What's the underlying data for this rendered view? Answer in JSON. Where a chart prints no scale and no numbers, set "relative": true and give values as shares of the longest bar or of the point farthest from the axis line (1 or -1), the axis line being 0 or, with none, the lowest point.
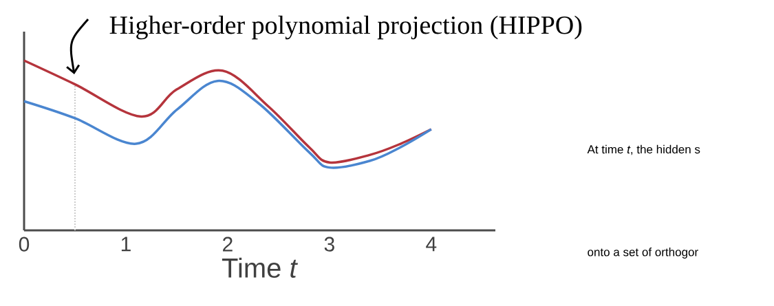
{
  "chart_data": {
    "type": "line",
    "title": "Higher-order polynomial projection (HIPPO)",
    "xlabel": "Time *t*",
    "relative": true,
    "xlim": [
      0,
      4.63
    ],
    "xticks": [
      0,
      1,
      2,
      3,
      4
    ],
    "marker": "none",
    "line_style": "solid",
    "series": [
      {
        "color": "#b5343c",
        "x": [
          0,
          0.5,
          1.15,
          1.5,
          1.95,
          2.4,
          2.8,
          3.0,
          3.4,
          3.7,
          4
        ],
        "values": [
          1.0,
          0.86,
          0.67,
          0.83,
          0.94,
          0.73,
          0.49,
          0.4,
          0.445,
          0.51,
          0.595
        ]
      },
      {
        "color": "#4a86d0",
        "x": [
          0,
          0.5,
          1.1,
          1.5,
          1.9,
          2.3,
          2.8,
          3.0,
          3.4,
          3.7,
          4
        ],
        "values": [
          0.76,
          0.66,
          0.51,
          0.71,
          0.88,
          0.75,
          0.46,
          0.37,
          0.41,
          0.49,
          0.595
        ]
      }
    ],
    "ref_lines": [
      {
        "axis": "x",
        "value": 0.5,
        "color": "#cccccc",
        "line_style": "dotted"
      }
    ],
    "annotations": [
      "At time *t*, the hidden s",
      "onto a set of orthogor"
    ]
  }
}
